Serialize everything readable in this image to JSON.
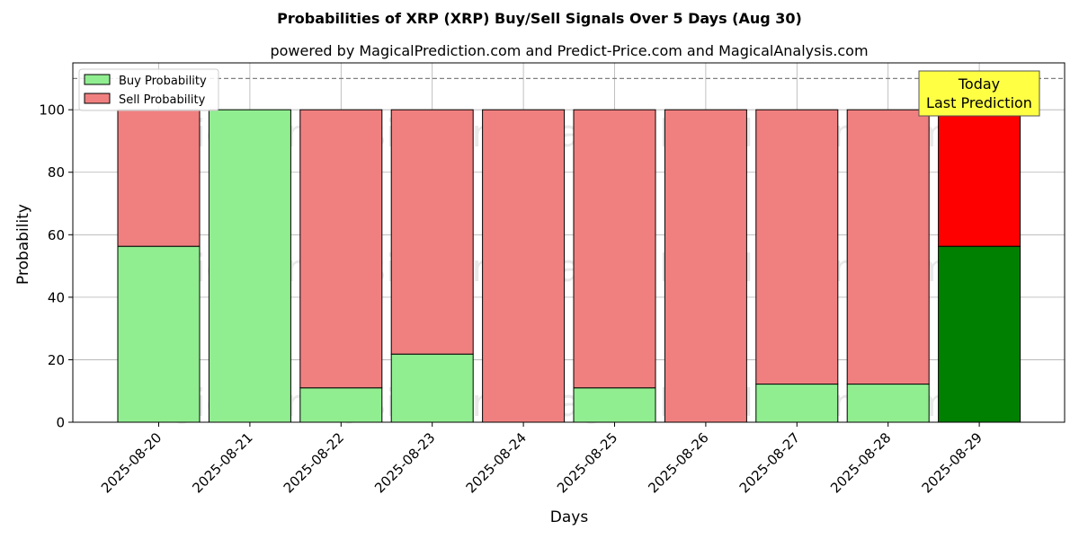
{
  "chart_data": {
    "type": "bar",
    "stacked": true,
    "title": "Probabilities of XRP (XRP) Buy/Sell Signals Over 5 Days (Aug 30)",
    "subtitle": "powered by MagicalPrediction.com and Predict-Price.com and MagicalAnalysis.com",
    "xlabel": "Days",
    "ylabel": "Probability",
    "ylim": [
      0,
      115
    ],
    "yticks": [
      0,
      20,
      40,
      60,
      80,
      100
    ],
    "grid": true,
    "legend_position": "top-left",
    "reference_line": 110,
    "categories": [
      "2025-08-20",
      "2025-08-21",
      "2025-08-22",
      "2025-08-23",
      "2025-08-24",
      "2025-08-25",
      "2025-08-26",
      "2025-08-27",
      "2025-08-28",
      "2025-08-29"
    ],
    "series": [
      {
        "name": "Buy Probability",
        "color": "#90ee90",
        "values": [
          56.3,
          100,
          11,
          21.8,
          0,
          11,
          0,
          12.2,
          12.2,
          56.3
        ]
      },
      {
        "name": "Sell Probability",
        "color": "#f08080",
        "values": [
          43.7,
          0,
          89,
          78.2,
          100,
          89,
          100,
          87.8,
          87.8,
          43.7
        ]
      }
    ],
    "highlight": {
      "index": 9,
      "buy_color": "#008000",
      "sell_color": "#ff0000"
    },
    "annotation": {
      "line1": "Today",
      "line2": "Last Prediction",
      "color": "#ffff44"
    },
    "watermarks": [
      "MagicalAnalysis.com",
      "MagicalPrediction.com"
    ]
  }
}
